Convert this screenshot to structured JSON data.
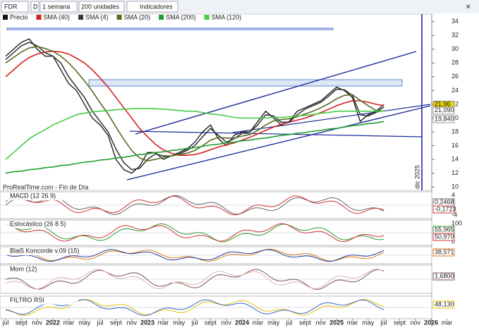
{
  "toolbar": {
    "symbol": "FDR",
    "interval": "1 semana",
    "units": "200 unidades",
    "indicators": "Indicadores"
  },
  "chart_data": {
    "type": "line",
    "annotations": [
      "ProRealTime.com - Fin de Día",
      "dic 2025"
    ],
    "categories": [
      "jul",
      null,
      "sept",
      null,
      "nov",
      null,
      "2022",
      null,
      "mar",
      null,
      "may",
      null,
      "jul",
      null,
      "sept",
      null,
      "nov",
      null,
      "2023",
      null,
      "mar",
      null,
      "may",
      null,
      "jul",
      null,
      "sept",
      null,
      "nov",
      null,
      "2024",
      null,
      "mar",
      null,
      "may",
      null,
      "jul",
      null,
      "sept",
      null,
      "nov",
      null,
      "2025",
      null,
      "mar",
      null,
      "may",
      null,
      "jul",
      null,
      "sept",
      null,
      "nov",
      null,
      "2026",
      null,
      "mar"
    ],
    "series": [
      {
        "name": "Precio",
        "color": "#111111",
        "values": [
          29,
          30,
          31,
          31.5,
          30,
          29,
          29,
          27,
          25,
          24,
          22,
          20,
          19,
          17.5,
          14,
          12.5,
          12,
          13,
          15,
          15,
          14,
          14.5,
          15,
          15.5,
          16.5,
          18,
          19,
          17,
          16,
          17.5,
          18,
          18,
          19.5,
          21,
          20,
          19,
          19.5,
          21,
          21.5,
          22,
          22.5,
          23.5,
          24.5,
          24,
          23,
          19.5,
          20.5,
          21,
          21.96,
          null,
          null,
          null,
          null,
          null,
          null,
          null,
          null
        ]
      },
      {
        "name": "SMA (40)",
        "color": "#d42020",
        "values": [
          26,
          27,
          28,
          28.8,
          29.3,
          29.6,
          29.7,
          29.6,
          29.3,
          28.7,
          28,
          27,
          25.8,
          24.5,
          23,
          21.5,
          20,
          18.5,
          17.3,
          16.2,
          15.4,
          14.9,
          14.6,
          14.6,
          14.7,
          15,
          15.4,
          15.8,
          16.1,
          16.4,
          16.8,
          17.2,
          17.7,
          18.2,
          18.7,
          19.1,
          19.4,
          19.7,
          20,
          20.4,
          20.8,
          21.3,
          21.8,
          22.2,
          22.5,
          22.5,
          22.3,
          22,
          21.8,
          null,
          null,
          null,
          null,
          null,
          null,
          null,
          null
        ]
      },
      {
        "name": "SMA (4)",
        "color": "#3a3a3a",
        "values": [
          28.5,
          29.5,
          30.5,
          31,
          30.5,
          29.5,
          29,
          28,
          26,
          24.5,
          23,
          21,
          19.5,
          18,
          15.5,
          13.5,
          12.5,
          12.7,
          14,
          14.8,
          14.5,
          14.5,
          14.8,
          15.3,
          16,
          17.3,
          18.5,
          17.5,
          16.5,
          17,
          17.8,
          18,
          19,
          20.5,
          20.3,
          19.4,
          19.4,
          20.5,
          21.3,
          21.8,
          22.3,
          23.2,
          24.2,
          24.1,
          23.3,
          20.5,
          20.3,
          20.8,
          21.6,
          null,
          null,
          null,
          null,
          null,
          null,
          null,
          null
        ]
      },
      {
        "name": "SMA (20)",
        "color": "#556b1f",
        "values": [
          28,
          28.8,
          29.6,
          30.2,
          30.4,
          30.1,
          29.7,
          29,
          28,
          26.8,
          25.4,
          23.9,
          22.2,
          20.6,
          18.7,
          16.9,
          15.3,
          14.2,
          13.8,
          14,
          14.3,
          14.5,
          14.7,
          14.9,
          15.3,
          16,
          16.8,
          17.2,
          17.1,
          17.1,
          17.4,
          17.6,
          18.2,
          19,
          19.6,
          19.8,
          19.9,
          20.2,
          20.6,
          21,
          21.5,
          22.1,
          22.8,
          23.3,
          23.4,
          22.6,
          21.8,
          21.1,
          21,
          null,
          null,
          null,
          null,
          null,
          null,
          null,
          null
        ]
      },
      {
        "name": "SMA (200)",
        "color": "#1e9e2e",
        "values": [
          12,
          12.2,
          12.3,
          12.5,
          12.6,
          12.8,
          12.9,
          13.1,
          13.2,
          13.4,
          13.6,
          13.7,
          13.9,
          14,
          14.2,
          14.3,
          14.5,
          14.7,
          14.8,
          15,
          15.1,
          15.3,
          15.4,
          15.6,
          15.7,
          15.9,
          16.1,
          16.2,
          16.4,
          16.5,
          16.7,
          16.8,
          17,
          17.1,
          17.3,
          17.5,
          17.6,
          17.8,
          17.9,
          18.1,
          18.2,
          18.4,
          18.5,
          18.7,
          18.9,
          19,
          19.2,
          19.3,
          19.5,
          null,
          null,
          null,
          null,
          null,
          null,
          null,
          null
        ]
      },
      {
        "name": "SMA (120)",
        "color": "#44cc44",
        "values": [
          14,
          15,
          16,
          17,
          17.7,
          18.3,
          19,
          19.5,
          20,
          20.5,
          20.7,
          20.9,
          21,
          21.1,
          21.2,
          21.3,
          21.35,
          21.4,
          21.4,
          21.35,
          21.3,
          21.2,
          21.1,
          21,
          21,
          20.8,
          20.6,
          20.5,
          20.3,
          20.1,
          20,
          20,
          20,
          20,
          20.1,
          20.1,
          20.2,
          20.3,
          20.4,
          20.5,
          20.7,
          20.8,
          21,
          21,
          21,
          21,
          21,
          21,
          21,
          null,
          null,
          null,
          null,
          null,
          null,
          null,
          null
        ]
      }
    ],
    "ylim": [
      9.5,
      35.1
    ],
    "yticks": [
      10,
      12,
      14,
      16,
      18,
      20,
      22,
      24,
      26,
      28,
      30,
      32,
      34
    ],
    "price_tags": [
      {
        "value": 21.96,
        "label": "21,96",
        "color": "#e8d000"
      },
      {
        "value": 21.09,
        "label": "21,090",
        "color": "#ffffff"
      },
      {
        "value": 19.84,
        "label": "19,840",
        "color": "#ffffff"
      }
    ]
  },
  "panels": [
    {
      "label": "MACD (12 26 9)",
      "scale": [
        "4",
        "-4"
      ],
      "readouts": [
        "0,2468",
        "-0,1723"
      ]
    },
    {
      "label": "Estocástico (26 8 5)",
      "scale": [
        "100",
        "0"
      ],
      "readouts": [
        "55,965",
        "50,970"
      ]
    },
    {
      "label": "Blai5 Koncorde v.09 (15)",
      "scale": [],
      "readouts": [
        "38,571"
      ]
    },
    {
      "label": "Mom (12)",
      "scale": [],
      "readouts": [
        "1,6800"
      ]
    },
    {
      "label": "FILTRO RSI",
      "scale": [],
      "readouts": [
        "48,130"
      ]
    }
  ]
}
